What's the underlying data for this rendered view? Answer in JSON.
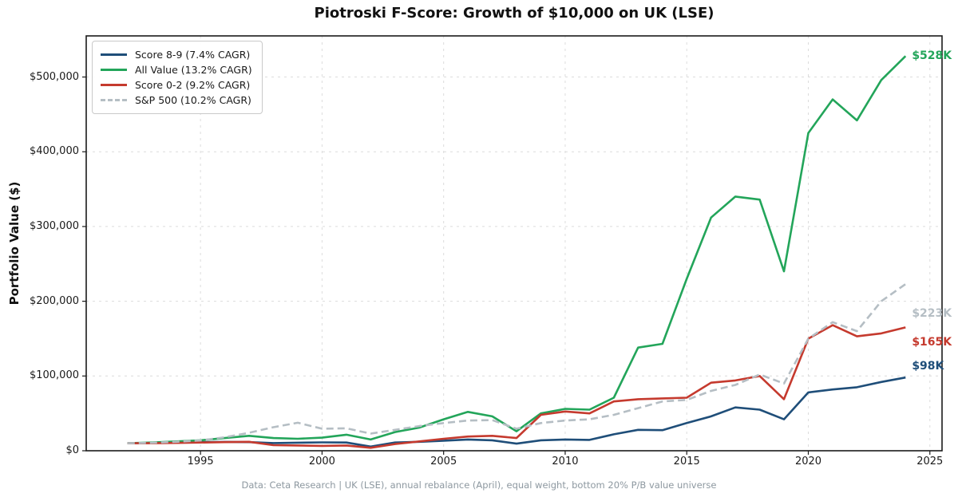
{
  "title": "Piotroski F-Score: Growth of $10,000 on UK (LSE)",
  "y_axis_label": "Portfolio Value ($)",
  "footer": "Data: Ceta Research | UK (LSE), annual rebalance (April), equal weight, bottom 20% P/B value universe",
  "chart_data": {
    "type": "line",
    "x": [
      1992,
      1993,
      1994,
      1995,
      1996,
      1997,
      1998,
      1999,
      2000,
      2001,
      2002,
      2003,
      2004,
      2005,
      2006,
      2007,
      2008,
      2009,
      2010,
      2011,
      2012,
      2013,
      2014,
      2015,
      2016,
      2017,
      2018,
      2019,
      2020,
      2021,
      2022,
      2023,
      2024
    ],
    "series": [
      {
        "name": "Score 8-9 (7.4% CAGR)",
        "color": "#1f4e79",
        "dashed": false,
        "end_label": "$98K",
        "end_label_dy": -14,
        "values": [
          10000,
          10500,
          11000,
          11500,
          11800,
          11500,
          10200,
          10800,
          11200,
          11000,
          5500,
          11000,
          12000,
          13500,
          15000,
          14000,
          9500,
          14000,
          15000,
          14500,
          22000,
          28000,
          27500,
          37000,
          46000,
          58000,
          55000,
          42000,
          78000,
          82000,
          85000,
          92000,
          98000
        ]
      },
      {
        "name": "All Value (13.2% CAGR)",
        "color": "#23a55a",
        "dashed": false,
        "end_label": "$528K",
        "end_label_dy": 0,
        "values": [
          10000,
          11000,
          12500,
          14000,
          17000,
          20000,
          17000,
          16000,
          17500,
          21500,
          15000,
          25000,
          31000,
          42000,
          52000,
          46000,
          26000,
          50000,
          56000,
          55000,
          71000,
          138000,
          143000,
          230000,
          312000,
          340000,
          336000,
          240000,
          425000,
          470000,
          442000,
          496000,
          528000
        ]
      },
      {
        "name": "Score 0-2 (9.2% CAGR)",
        "color": "#c53a2e",
        "dashed": false,
        "end_label": "$165K",
        "end_label_dy": 19,
        "values": [
          10000,
          10000,
          10500,
          11000,
          11500,
          12000,
          7500,
          7000,
          6500,
          7000,
          4000,
          9000,
          12500,
          16000,
          19000,
          20000,
          17000,
          48000,
          52500,
          50000,
          66000,
          69000,
          70000,
          71000,
          91000,
          94000,
          100000,
          69000,
          150000,
          168000,
          153000,
          157000,
          165000
        ]
      },
      {
        "name": "S&P 500 (10.2% CAGR)",
        "color": "#b5bec4",
        "dashed": true,
        "end_label": "$223K",
        "end_label_dy": 37,
        "values": [
          10000,
          10600,
          12000,
          13800,
          18000,
          24000,
          31500,
          37500,
          29500,
          30000,
          23000,
          28000,
          33000,
          37000,
          40500,
          41000,
          29500,
          37000,
          40500,
          42000,
          48000,
          57000,
          66000,
          68000,
          80000,
          88000,
          102000,
          90000,
          150000,
          172000,
          160000,
          200000,
          223000
        ]
      }
    ],
    "xticks": [
      1995,
      2000,
      2005,
      2010,
      2015,
      2020,
      2025
    ],
    "yticks": [
      {
        "value": 0,
        "label": "$0"
      },
      {
        "value": 100000,
        "label": "$100,000"
      },
      {
        "value": 200000,
        "label": "$200,000"
      },
      {
        "value": 300000,
        "label": "$300,000"
      },
      {
        "value": 400000,
        "label": "$400,000"
      },
      {
        "value": 500000,
        "label": "$500,000"
      }
    ],
    "xlim": [
      1990.3,
      2025.5
    ],
    "ylim": [
      0,
      555000
    ],
    "grid": true,
    "legend_position": "upper-left"
  }
}
